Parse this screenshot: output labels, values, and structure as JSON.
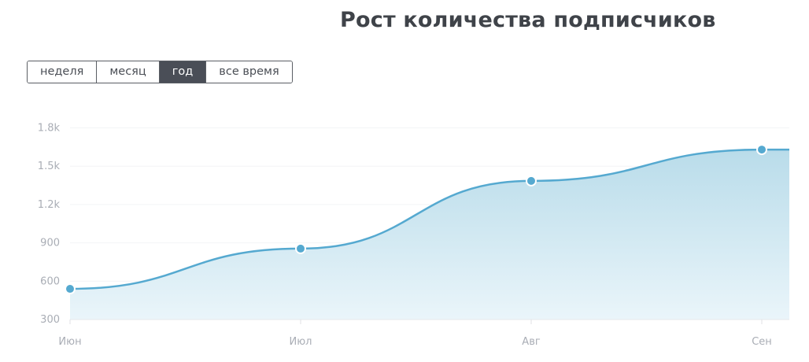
{
  "tabs": [
    {
      "label": "неделя"
    },
    {
      "label": "месяц"
    },
    {
      "label": "год",
      "active": true
    },
    {
      "label": "все время"
    }
  ],
  "chart_data": {
    "type": "area",
    "title": "Рост количества подписчиков",
    "categories": [
      "Июн",
      "Июл",
      "Авг",
      "Сен"
    ],
    "values": [
      540,
      855,
      1385,
      1630
    ],
    "ylim": [
      300,
      1800
    ],
    "yticks": [
      300,
      600,
      900,
      1200,
      1500,
      1800
    ],
    "ytick_labels": [
      "300",
      "600",
      "900",
      "1.2k",
      "1.5k",
      "1.8k"
    ],
    "xlabel": "",
    "ylabel": "",
    "grid": true,
    "colors": {
      "line": "#55a9d0",
      "fill_top": "#b9dcea",
      "fill_bottom": "#eaf5fa"
    }
  }
}
